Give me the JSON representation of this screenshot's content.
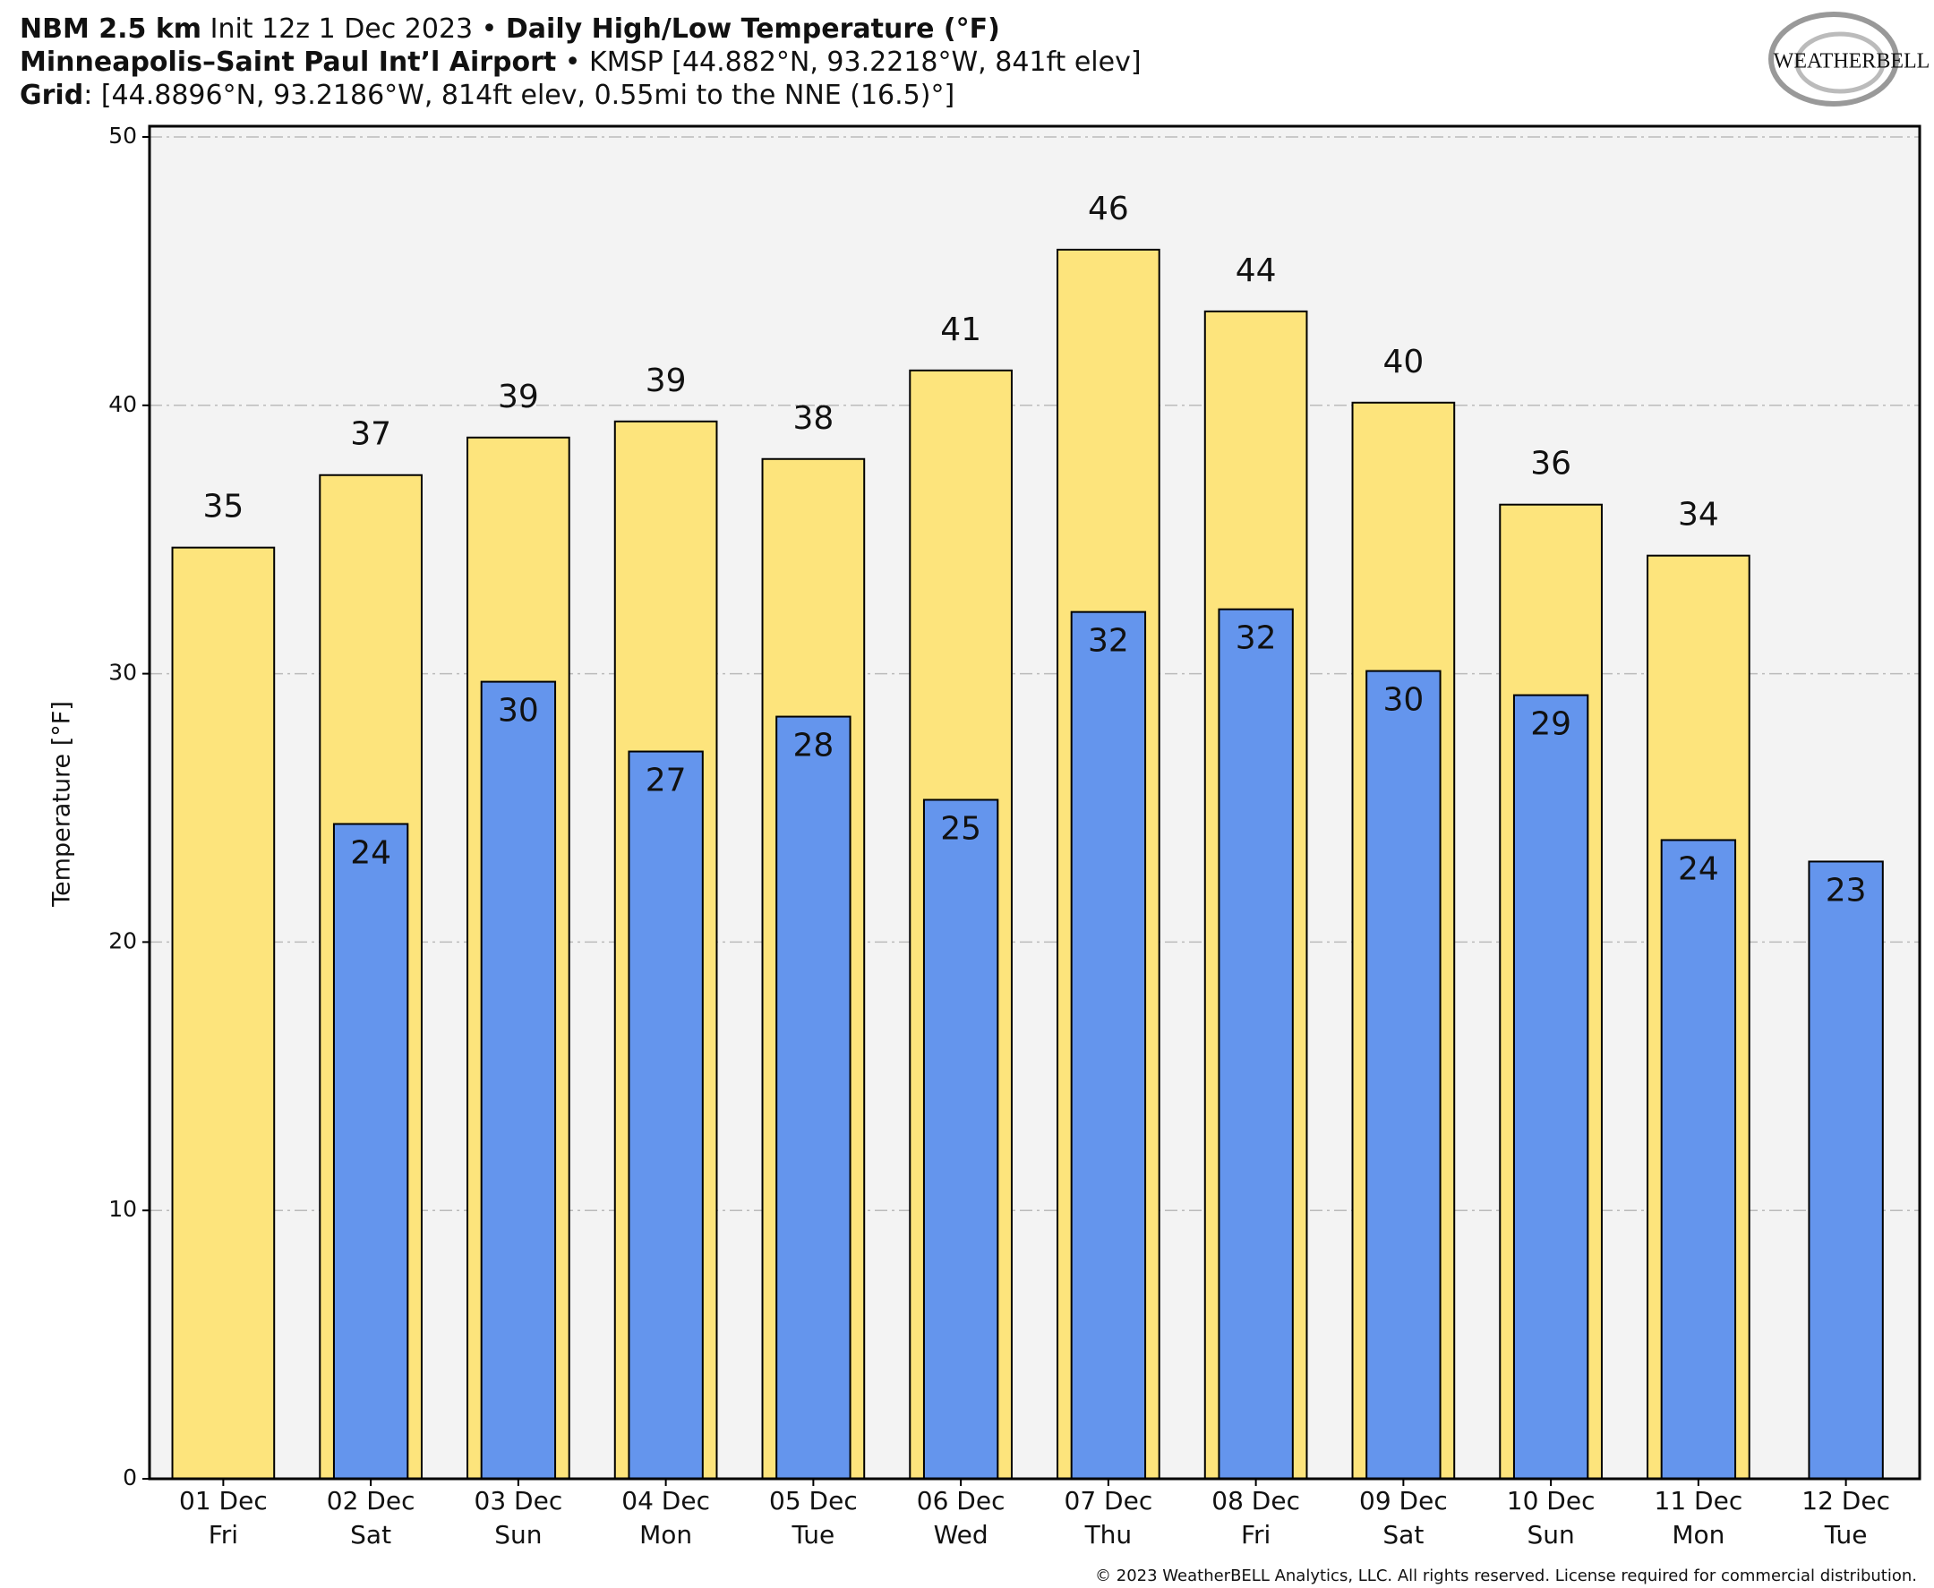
{
  "chart_data": {
    "type": "bar",
    "title": {
      "line1": [
        "NBM 2.5 km",
        " Init 12z 1 Dec 2023 • ",
        "Daily High/Low Temperature (°F)"
      ],
      "line2": [
        "Minneapolis–Saint Paul Int’l Airport",
        " • KMSP [44.882°N, 93.2218°W, 841ft elev]"
      ],
      "line3": [
        "Grid",
        ": [44.8896°N, 93.2186°W, 814ft elev, 0.55mi to the NNE (16.5)°]"
      ]
    },
    "y_label": "Temperature [°F]",
    "logo": "WEATHERBELL",
    "footer": "© 2023 WeatherBELL Analytics, LLC. All rights reserved. License required for commercial distribution.",
    "categories": [
      "01 Dec",
      "02 Dec",
      "03 Dec",
      "04 Dec",
      "05 Dec",
      "06 Dec",
      "07 Dec",
      "08 Dec",
      "09 Dec",
      "10 Dec",
      "11 Dec",
      "12 Dec"
    ],
    "weekdays": [
      "Fri",
      "Sat",
      "Sun",
      "Mon",
      "Tue",
      "Wed",
      "Thu",
      "Fri",
      "Sat",
      "Sun",
      "Mon",
      "Tue"
    ],
    "series": [
      {
        "color": "#fde47c",
        "values": [
          34.7,
          37.4,
          38.8,
          39.4,
          38.0,
          41.3,
          45.8,
          43.5,
          40.1,
          36.3,
          34.4,
          null
        ],
        "value_labels": [
          "35",
          "37",
          "39",
          "39",
          "38",
          "41",
          "46",
          "44",
          "40",
          "36",
          "34",
          null
        ]
      },
      {
        "color": "#6495ed",
        "values": [
          null,
          24.4,
          29.7,
          27.1,
          28.4,
          25.3,
          32.3,
          32.4,
          30.1,
          29.2,
          23.8,
          23.0
        ],
        "value_labels": [
          null,
          "24",
          "30",
          "27",
          "28",
          "25",
          "32",
          "32",
          "30",
          "29",
          "24",
          "23"
        ]
      }
    ],
    "ylim": [
      0,
      50.4
    ],
    "yticks": [
      0,
      10,
      20,
      30,
      40,
      50
    ],
    "grid": true
  }
}
